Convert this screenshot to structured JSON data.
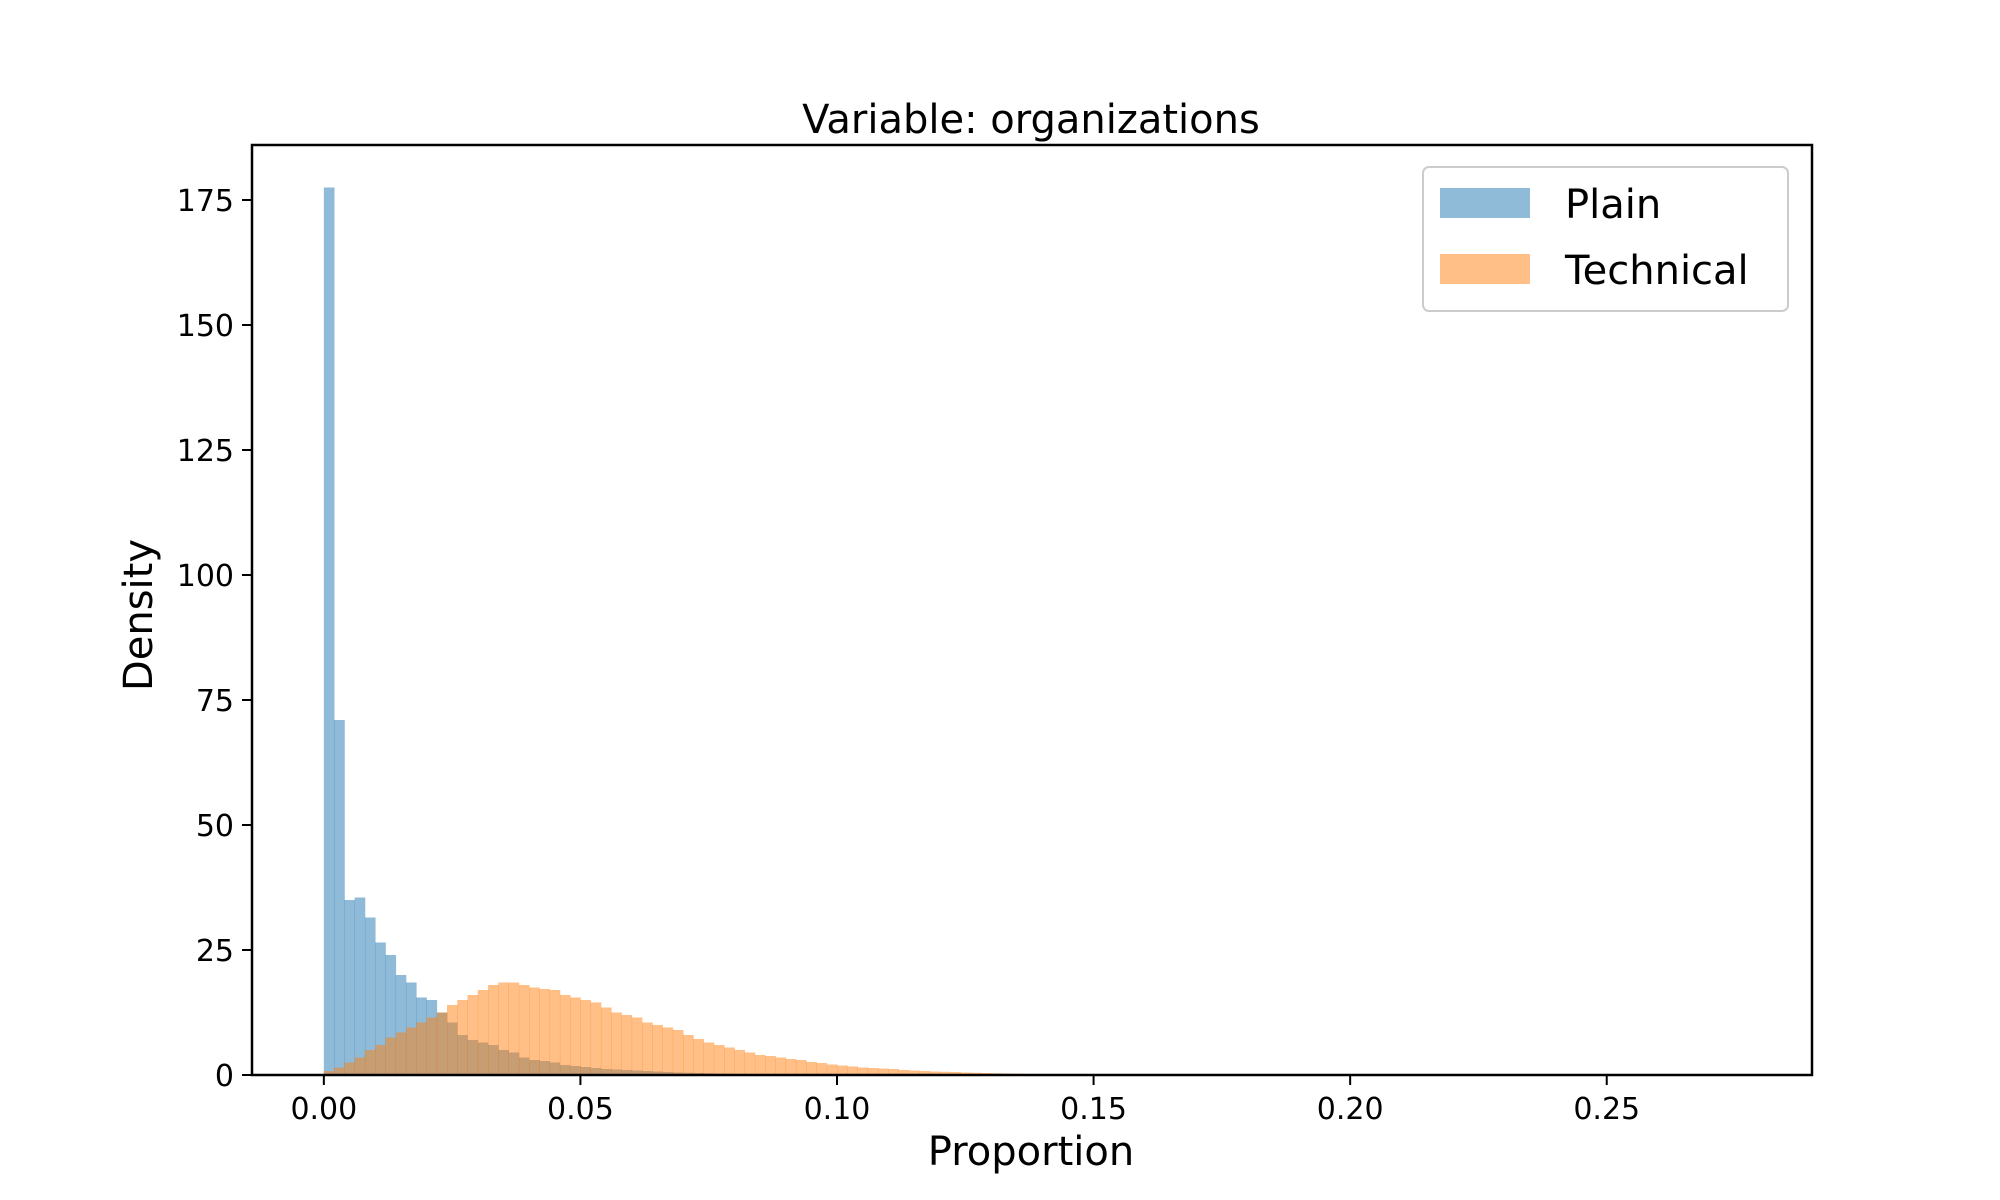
{
  "chart_data": {
    "type": "bar",
    "title": "Variable: organizations",
    "xlabel": "Proportion",
    "ylabel": "Density",
    "xlim": [
      -0.014,
      0.29
    ],
    "ylim": [
      0,
      186
    ],
    "xticks": [
      0.0,
      0.05,
      0.1,
      0.15,
      0.2,
      0.25
    ],
    "xtick_labels": [
      "0.00",
      "0.05",
      "0.10",
      "0.15",
      "0.20",
      "0.25"
    ],
    "yticks": [
      0,
      25,
      50,
      75,
      100,
      125,
      150,
      175
    ],
    "ytick_labels": [
      "0",
      "25",
      "50",
      "75",
      "100",
      "125",
      "150",
      "175"
    ],
    "grid": false,
    "legend": "top-right",
    "bin_start": 0.0,
    "bin_width": 0.002,
    "series": [
      {
        "name": "Plain",
        "color": "#1f77b4",
        "opacity": 0.5,
        "values": [
          177.5,
          71,
          35,
          35.5,
          31.5,
          26.5,
          24,
          20,
          18.5,
          15.5,
          15,
          12.5,
          10.5,
          8,
          7,
          6.5,
          6,
          5,
          4.5,
          3.5,
          3,
          2.8,
          2.5,
          2,
          1.8,
          1.6,
          1.4,
          1.2,
          1.1,
          1,
          0.9,
          0.8,
          0.7,
          0.6,
          0.5,
          0.45,
          0.4,
          0.35,
          0.3,
          0.25,
          0.22,
          0.2,
          0.18,
          0.15,
          0.12,
          0.1,
          0.08,
          0.06,
          0.05,
          0.04
        ]
      },
      {
        "name": "Technical",
        "color": "#ff7f0e",
        "opacity": 0.5,
        "values": [
          0.8,
          1.5,
          2.5,
          3.5,
          5,
          6,
          7.5,
          8.5,
          9.5,
          10.5,
          11.5,
          12.5,
          14,
          15,
          16,
          17,
          18,
          18.5,
          18.5,
          18,
          17.5,
          17.2,
          17,
          16,
          15.5,
          15,
          14.5,
          13.5,
          12.5,
          12,
          11.5,
          10.5,
          10,
          9.5,
          9,
          8,
          7.2,
          6.5,
          6,
          5.5,
          5,
          4.5,
          4,
          3.8,
          3.5,
          3.2,
          3,
          2.6,
          2.4,
          2.1,
          1.9,
          1.7,
          1.5,
          1.4,
          1.3,
          1.2,
          1.0,
          0.9,
          0.8,
          0.7,
          0.65,
          0.6,
          0.5,
          0.45,
          0.4,
          0.35,
          0.3,
          0.25,
          0.22,
          0.2,
          0.18,
          0.15,
          0.12,
          0.1,
          0.08,
          0.06
        ]
      }
    ]
  }
}
